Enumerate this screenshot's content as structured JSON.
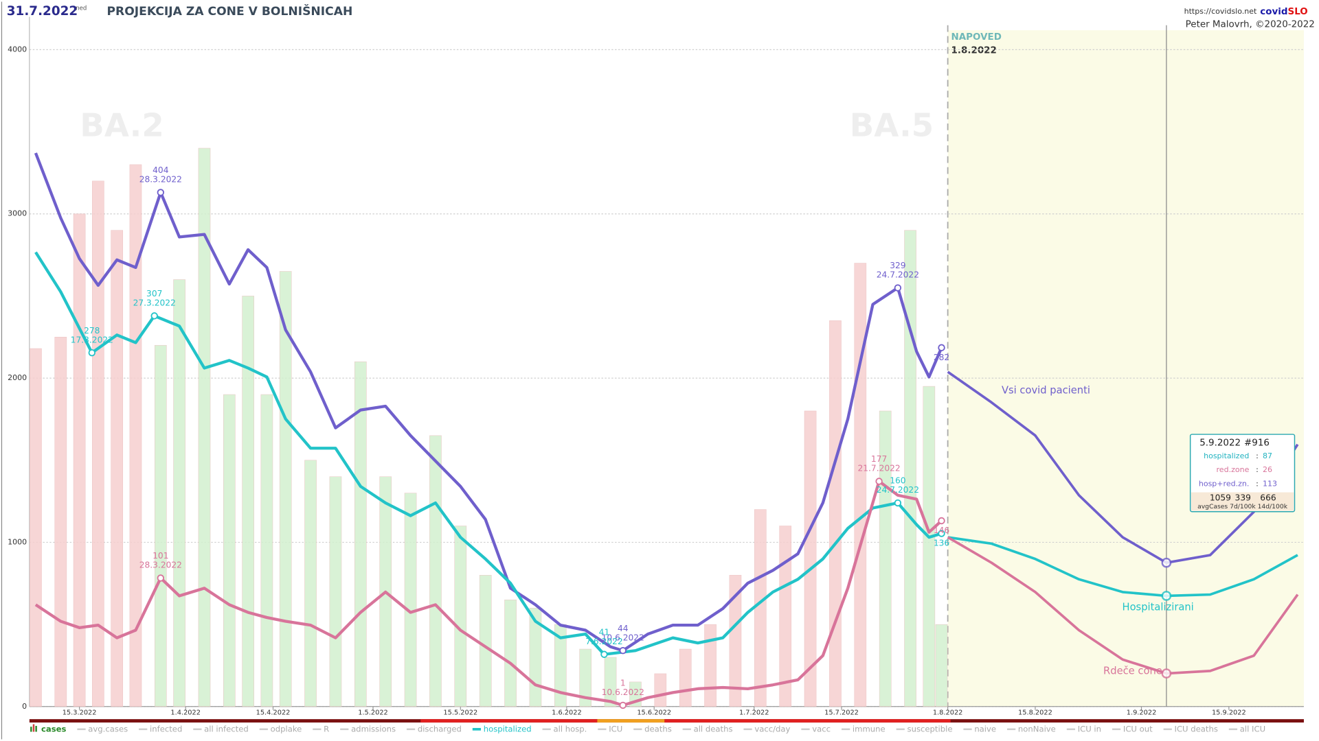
{
  "header": {
    "date": "31.7.2022",
    "weekday": "ned",
    "title": "PROJEKCIJA ZA CONE V BOLNIŠNICAH",
    "url": "https://covidslo.net",
    "brand": [
      "covid",
      "SLO"
    ],
    "author": "Peter Malovrh, ©2020-2022"
  },
  "chart_data": {
    "type": "combo",
    "xlim": [
      "7.3.2022",
      "27.9.2022"
    ],
    "xticks": [
      "15.3.2022",
      "1.4.2022",
      "15.4.2022",
      "1.5.2022",
      "15.5.2022",
      "1.6.2022",
      "15.6.2022",
      "1.7.2022",
      "15.7.2022",
      "1.8.2022",
      "15.8.2022",
      "1.9.2022",
      "15.9.2022"
    ],
    "ylim": [
      0,
      4200
    ],
    "yticks": [
      0,
      1000,
      2000,
      3000,
      4000
    ],
    "y2lim": [
      0,
      542
    ],
    "grid": true,
    "watermarks": [
      "BA.2",
      "BA.5"
    ],
    "forecast": {
      "label": "NAPOVED",
      "start": "1.8.2022"
    },
    "series": [
      {
        "type": "bar",
        "axis": "y",
        "x": [
          "8.3.2022",
          "12.3.2022",
          "15.3.2022",
          "18.3.2022",
          "21.3.2022",
          "24.3.2022",
          "28.3.2022",
          "31.3.2022",
          "4.4.2022",
          "8.4.2022",
          "11.4.2022",
          "14.4.2022",
          "17.4.2022",
          "21.4.2022",
          "25.4.2022",
          "29.4.2022",
          "3.5.2022",
          "7.5.2022",
          "11.5.2022",
          "15.5.2022",
          "19.5.2022",
          "23.5.2022",
          "27.5.2022",
          "31.5.2022",
          "4.6.2022",
          "8.6.2022",
          "12.6.2022",
          "16.6.2022",
          "20.6.2022",
          "24.6.2022",
          "28.6.2022",
          "2.7.2022",
          "6.7.2022",
          "10.7.2022",
          "14.7.2022",
          "18.7.2022",
          "22.7.2022",
          "26.7.2022",
          "29.7.2022",
          "31.7.2022"
        ],
        "values": [
          2180,
          2250,
          3000,
          3200,
          2900,
          3300,
          2200,
          2600,
          3400,
          1900,
          2500,
          1900,
          2650,
          1500,
          1400,
          2100,
          1400,
          1300,
          1650,
          1100,
          800,
          650,
          600,
          500,
          350,
          300,
          150,
          200,
          350,
          500,
          800,
          1200,
          1100,
          1800,
          2350,
          2700,
          1800,
          2900,
          1950,
          500
        ],
        "colors": [
          "#f6cfcf",
          "#f6cfcf",
          "#f6cfcf",
          "#f6cfcf",
          "#f6cfcf",
          "#f6cfcf",
          "#d3f0cf",
          "#d3f0cf",
          "#d3f0cf",
          "#d3f0cf",
          "#d3f0cf",
          "#d3f0cf",
          "#d3f0cf",
          "#d3f0cf",
          "#d3f0cf",
          "#d3f0cf",
          "#d3f0cf",
          "#d3f0cf",
          "#d3f0cf",
          "#d3f0cf",
          "#d3f0cf",
          "#d3f0cf",
          "#d3f0cf",
          "#d3f0cf",
          "#d3f0cf",
          "#d3f0cf",
          "#d3f0cf",
          "#f6cfcf",
          "#f6cfcf",
          "#f6cfcf",
          "#f6cfcf",
          "#f6cfcf",
          "#f6cfcf",
          "#f6cfcf",
          "#f6cfcf",
          "#f6cfcf",
          "#d3f0cf",
          "#d3f0cf",
          "#d3f0cf",
          "#d3f0cf"
        ]
      },
      {
        "type": "line",
        "axis": "y2",
        "color": "#6f5fcc",
        "x": [
          "8.3.2022",
          "12.3.2022",
          "15.3.2022",
          "18.3.2022",
          "21.3.2022",
          "24.3.2022",
          "28.3.2022",
          "31.3.2022",
          "4.4.2022",
          "8.4.2022",
          "11.4.2022",
          "14.4.2022",
          "17.4.2022",
          "21.4.2022",
          "25.4.2022",
          "29.4.2022",
          "3.5.2022",
          "7.5.2022",
          "11.5.2022",
          "15.5.2022",
          "19.5.2022",
          "23.5.2022",
          "27.5.2022",
          "31.5.2022",
          "4.6.2022",
          "8.6.2022",
          "10.6.2022",
          "14.6.2022",
          "18.6.2022",
          "22.6.2022",
          "26.6.2022",
          "30.6.2022",
          "4.7.2022",
          "8.7.2022",
          "12.7.2022",
          "16.7.2022",
          "20.7.2022",
          "24.7.2022",
          "27.7.2022",
          "29.7.2022",
          "31.7.2022"
        ],
        "values": [
          435,
          384,
          352,
          331,
          351,
          345,
          404,
          369,
          371,
          332,
          359,
          345,
          296,
          263,
          219,
          233,
          236,
          213,
          193,
          173,
          147,
          93,
          80,
          64,
          60,
          47,
          44,
          57,
          64,
          64,
          77,
          97,
          107,
          120,
          160,
          226,
          316,
          329,
          279,
          259,
          282
        ]
      },
      {
        "type": "line",
        "axis": "y2",
        "color": "#22c3c8",
        "x": [
          "8.3.2022",
          "12.3.2022",
          "17.3.2022",
          "21.3.2022",
          "24.3.2022",
          "27.3.2022",
          "31.3.2022",
          "4.4.2022",
          "8.4.2022",
          "11.4.2022",
          "14.4.2022",
          "17.4.2022",
          "21.4.2022",
          "25.4.2022",
          "29.4.2022",
          "3.5.2022",
          "7.5.2022",
          "11.5.2022",
          "15.5.2022",
          "19.5.2022",
          "23.5.2022",
          "27.5.2022",
          "31.5.2022",
          "4.6.2022",
          "7.6.2022",
          "12.6.2022",
          "18.6.2022",
          "22.6.2022",
          "26.6.2022",
          "30.6.2022",
          "4.7.2022",
          "8.7.2022",
          "12.7.2022",
          "16.7.2022",
          "20.7.2022",
          "24.7.2022",
          "27.7.2022",
          "29.7.2022",
          "31.7.2022"
        ],
        "values": [
          357,
          326,
          278,
          292,
          286,
          307,
          299,
          266,
          272,
          266,
          259,
          226,
          203,
          203,
          173,
          160,
          150,
          160,
          133,
          116,
          97,
          67,
          54,
          57,
          41,
          44,
          54,
          50,
          54,
          74,
          90,
          100,
          116,
          140,
          156,
          160,
          143,
          133,
          136
        ]
      },
      {
        "type": "line",
        "axis": "y2",
        "color": "#d8749a",
        "x": [
          "8.3.2022",
          "12.3.2022",
          "15.3.2022",
          "18.3.2022",
          "21.3.2022",
          "24.3.2022",
          "28.3.2022",
          "31.3.2022",
          "4.4.2022",
          "8.4.2022",
          "11.4.2022",
          "14.4.2022",
          "17.4.2022",
          "21.4.2022",
          "25.4.2022",
          "29.4.2022",
          "3.5.2022",
          "7.5.2022",
          "11.5.2022",
          "15.5.2022",
          "19.5.2022",
          "23.5.2022",
          "27.5.2022",
          "31.5.2022",
          "4.6.2022",
          "8.6.2022",
          "10.6.2022",
          "14.6.2022",
          "18.6.2022",
          "22.6.2022",
          "26.6.2022",
          "30.6.2022",
          "4.7.2022",
          "8.7.2022",
          "12.7.2022",
          "16.7.2022",
          "21.7.2022",
          "24.7.2022",
          "27.7.2022",
          "29.7.2022",
          "31.7.2022"
        ],
        "values": [
          80,
          67,
          62,
          64,
          54,
          60,
          101,
          87,
          93,
          80,
          74,
          70,
          67,
          64,
          54,
          74,
          90,
          74,
          80,
          60,
          47,
          34,
          17,
          11,
          7,
          4,
          1,
          7,
          11,
          14,
          15,
          14,
          17,
          21,
          40,
          93,
          177,
          166,
          163,
          137,
          146
        ]
      },
      {
        "type": "line",
        "axis": "y2",
        "name": "Vsi covid pacienti",
        "color": "#6f5fcc",
        "x": [
          "1.8.2022",
          "8.8.2022",
          "15.8.2022",
          "22.8.2022",
          "29.8.2022",
          "5.9.2022",
          "12.9.2022",
          "19.9.2022",
          "26.9.2022"
        ],
        "values": [
          263,
          239,
          213,
          166,
          133,
          113,
          119,
          153,
          206
        ]
      },
      {
        "type": "line",
        "axis": "y2",
        "name": "Hospitalizirani",
        "color": "#22c3c8",
        "x": [
          "1.8.2022",
          "8.8.2022",
          "15.8.2022",
          "22.8.2022",
          "29.8.2022",
          "5.9.2022",
          "12.9.2022",
          "19.9.2022",
          "26.9.2022"
        ],
        "values": [
          133,
          128,
          116,
          100,
          90,
          87,
          88,
          100,
          119
        ]
      },
      {
        "type": "line",
        "axis": "y2",
        "name": "Rdeče cone",
        "color": "#d8749a",
        "x": [
          "1.8.2022",
          "8.8.2022",
          "15.8.2022",
          "22.8.2022",
          "29.8.2022",
          "5.9.2022",
          "12.9.2022",
          "19.9.2022",
          "26.9.2022"
        ],
        "values": [
          133,
          113,
          90,
          60,
          37,
          26,
          28,
          40,
          88
        ]
      }
    ],
    "annotations": [
      {
        "series": 1,
        "point": 6,
        "show_date": true
      },
      {
        "series": 1,
        "point": 26,
        "show_date": true
      },
      {
        "series": 1,
        "point": 37,
        "show_date": true
      },
      {
        "series": 1,
        "point": 40,
        "show_date": false
      },
      {
        "series": 2,
        "point": 5,
        "show_date": true
      },
      {
        "series": 2,
        "point": 2,
        "show_date": true
      },
      {
        "series": 2,
        "point": 24,
        "show_date": true
      },
      {
        "series": 2,
        "point": 35,
        "show_date": true
      },
      {
        "series": 2,
        "point": 38,
        "show_date": false
      },
      {
        "series": 3,
        "point": 6,
        "show_date": true
      },
      {
        "series": 3,
        "point": 26,
        "show_date": true
      },
      {
        "series": 3,
        "point": 36,
        "show_date": true
      },
      {
        "series": 3,
        "point": 40,
        "show_date": false
      }
    ],
    "tooltip": {
      "date": "5.9.2022",
      "id": "#916",
      "separator": ":",
      "rows": [
        {
          "label": "hospitalized",
          "value": 87,
          "color": "#22b3c0"
        },
        {
          "label": "red.zone",
          "value": 26,
          "color": "#d8749a"
        },
        {
          "label": "hosp+red.zn.",
          "value": 113,
          "color": "#6f5fcc"
        }
      ],
      "stats": [
        1059,
        339,
        666
      ],
      "stats_caption": "avgCases 7d/100k 14d/100k"
    },
    "legend": [
      {
        "label": "cases",
        "active": true,
        "color": "#2a8a2a"
      },
      {
        "label": "avg.cases",
        "active": false
      },
      {
        "label": "infected",
        "active": false
      },
      {
        "label": "all infected",
        "active": false
      },
      {
        "label": "odplake",
        "active": false
      },
      {
        "label": "R",
        "active": false
      },
      {
        "label": "admissions",
        "active": false
      },
      {
        "label": "discharged",
        "active": false
      },
      {
        "label": "hospitalized",
        "active": true,
        "color": "#22c3c8"
      },
      {
        "label": "all hosp.",
        "active": false
      },
      {
        "label": "ICU",
        "active": false
      },
      {
        "label": "deaths",
        "active": false
      },
      {
        "label": "all deaths",
        "active": false
      },
      {
        "label": "vacc/day",
        "active": false
      },
      {
        "label": "vacc",
        "active": false
      },
      {
        "label": "immune",
        "active": false
      },
      {
        "label": "susceptible",
        "active": false
      },
      {
        "label": "naive",
        "active": false
      },
      {
        "label": "nonNaive",
        "active": false
      },
      {
        "label": "ICU in",
        "active": false
      },
      {
        "label": "ICU out",
        "active": false
      },
      {
        "label": "ICU deaths",
        "active": false
      },
      {
        "label": "all ICU",
        "active": false
      }
    ]
  }
}
